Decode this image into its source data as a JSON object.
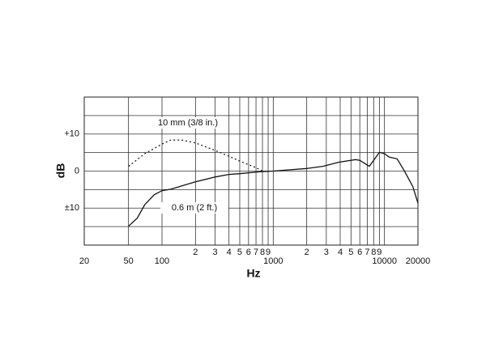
{
  "chart_data": {
    "type": "line",
    "x_label": "Hz",
    "y_label": "dB",
    "log_x": true,
    "xlim": [
      20,
      20000
    ],
    "ylim": [
      -20,
      20
    ],
    "xticks": [
      20,
      50,
      100,
      {
        "value": 200,
        "label": "2"
      },
      {
        "value": 300,
        "label": "3"
      },
      {
        "value": 400,
        "label": "4"
      },
      {
        "value": 500,
        "label": "5"
      },
      {
        "value": 600,
        "label": "6"
      },
      {
        "value": 700,
        "label": "7"
      },
      {
        "value": 800,
        "label": "8"
      },
      {
        "value": 900,
        "label": "9"
      },
      1000,
      {
        "value": 2000,
        "label": "2"
      },
      {
        "value": 3000,
        "label": "3"
      },
      {
        "value": 4000,
        "label": "4"
      },
      {
        "value": 5000,
        "label": "5"
      },
      {
        "value": 6000,
        "label": "6"
      },
      {
        "value": 7000,
        "label": "7"
      },
      {
        "value": 8000,
        "label": "8"
      },
      {
        "value": 9000,
        "label": "9"
      },
      10000,
      20000
    ],
    "yticks": [
      {
        "value": 10,
        "label": "+10"
      },
      0,
      {
        "value": -10,
        "label": "±10"
      }
    ],
    "ygrid": [
      -20,
      -15,
      -10,
      -5,
      0,
      5,
      10,
      15,
      20
    ],
    "series": [
      {
        "name": "10 mm (3/8 in.)",
        "color": "#111",
        "dashed": true,
        "x": [
          50,
          70,
          100,
          120,
          150,
          200,
          300,
          400,
          500,
          700,
          800
        ],
        "values": [
          1.3,
          4.7,
          7.3,
          8.4,
          8.4,
          7.6,
          5.6,
          4,
          2.7,
          0.9,
          0
        ]
      },
      {
        "name": "0.6 m (2 ft.)",
        "color": "#111",
        "dashed": false,
        "x": [
          50,
          60,
          70,
          85,
          100,
          120,
          200,
          300,
          400,
          500,
          750,
          1000,
          2000,
          2800,
          3900,
          5500,
          6000,
          7300,
          8000,
          9000,
          10000,
          11000,
          13000,
          15000,
          18000,
          20000
        ],
        "values": [
          -14.9,
          -12.7,
          -9.1,
          -6.4,
          -5.3,
          -4.9,
          -2.9,
          -1.6,
          -0.9,
          -0.7,
          -0.2,
          0,
          0.7,
          1.3,
          2.4,
          3.1,
          2.9,
          1.3,
          2.9,
          5.1,
          4.7,
          3.8,
          3.3,
          0.2,
          -4.2,
          -8.7
        ]
      }
    ]
  }
}
